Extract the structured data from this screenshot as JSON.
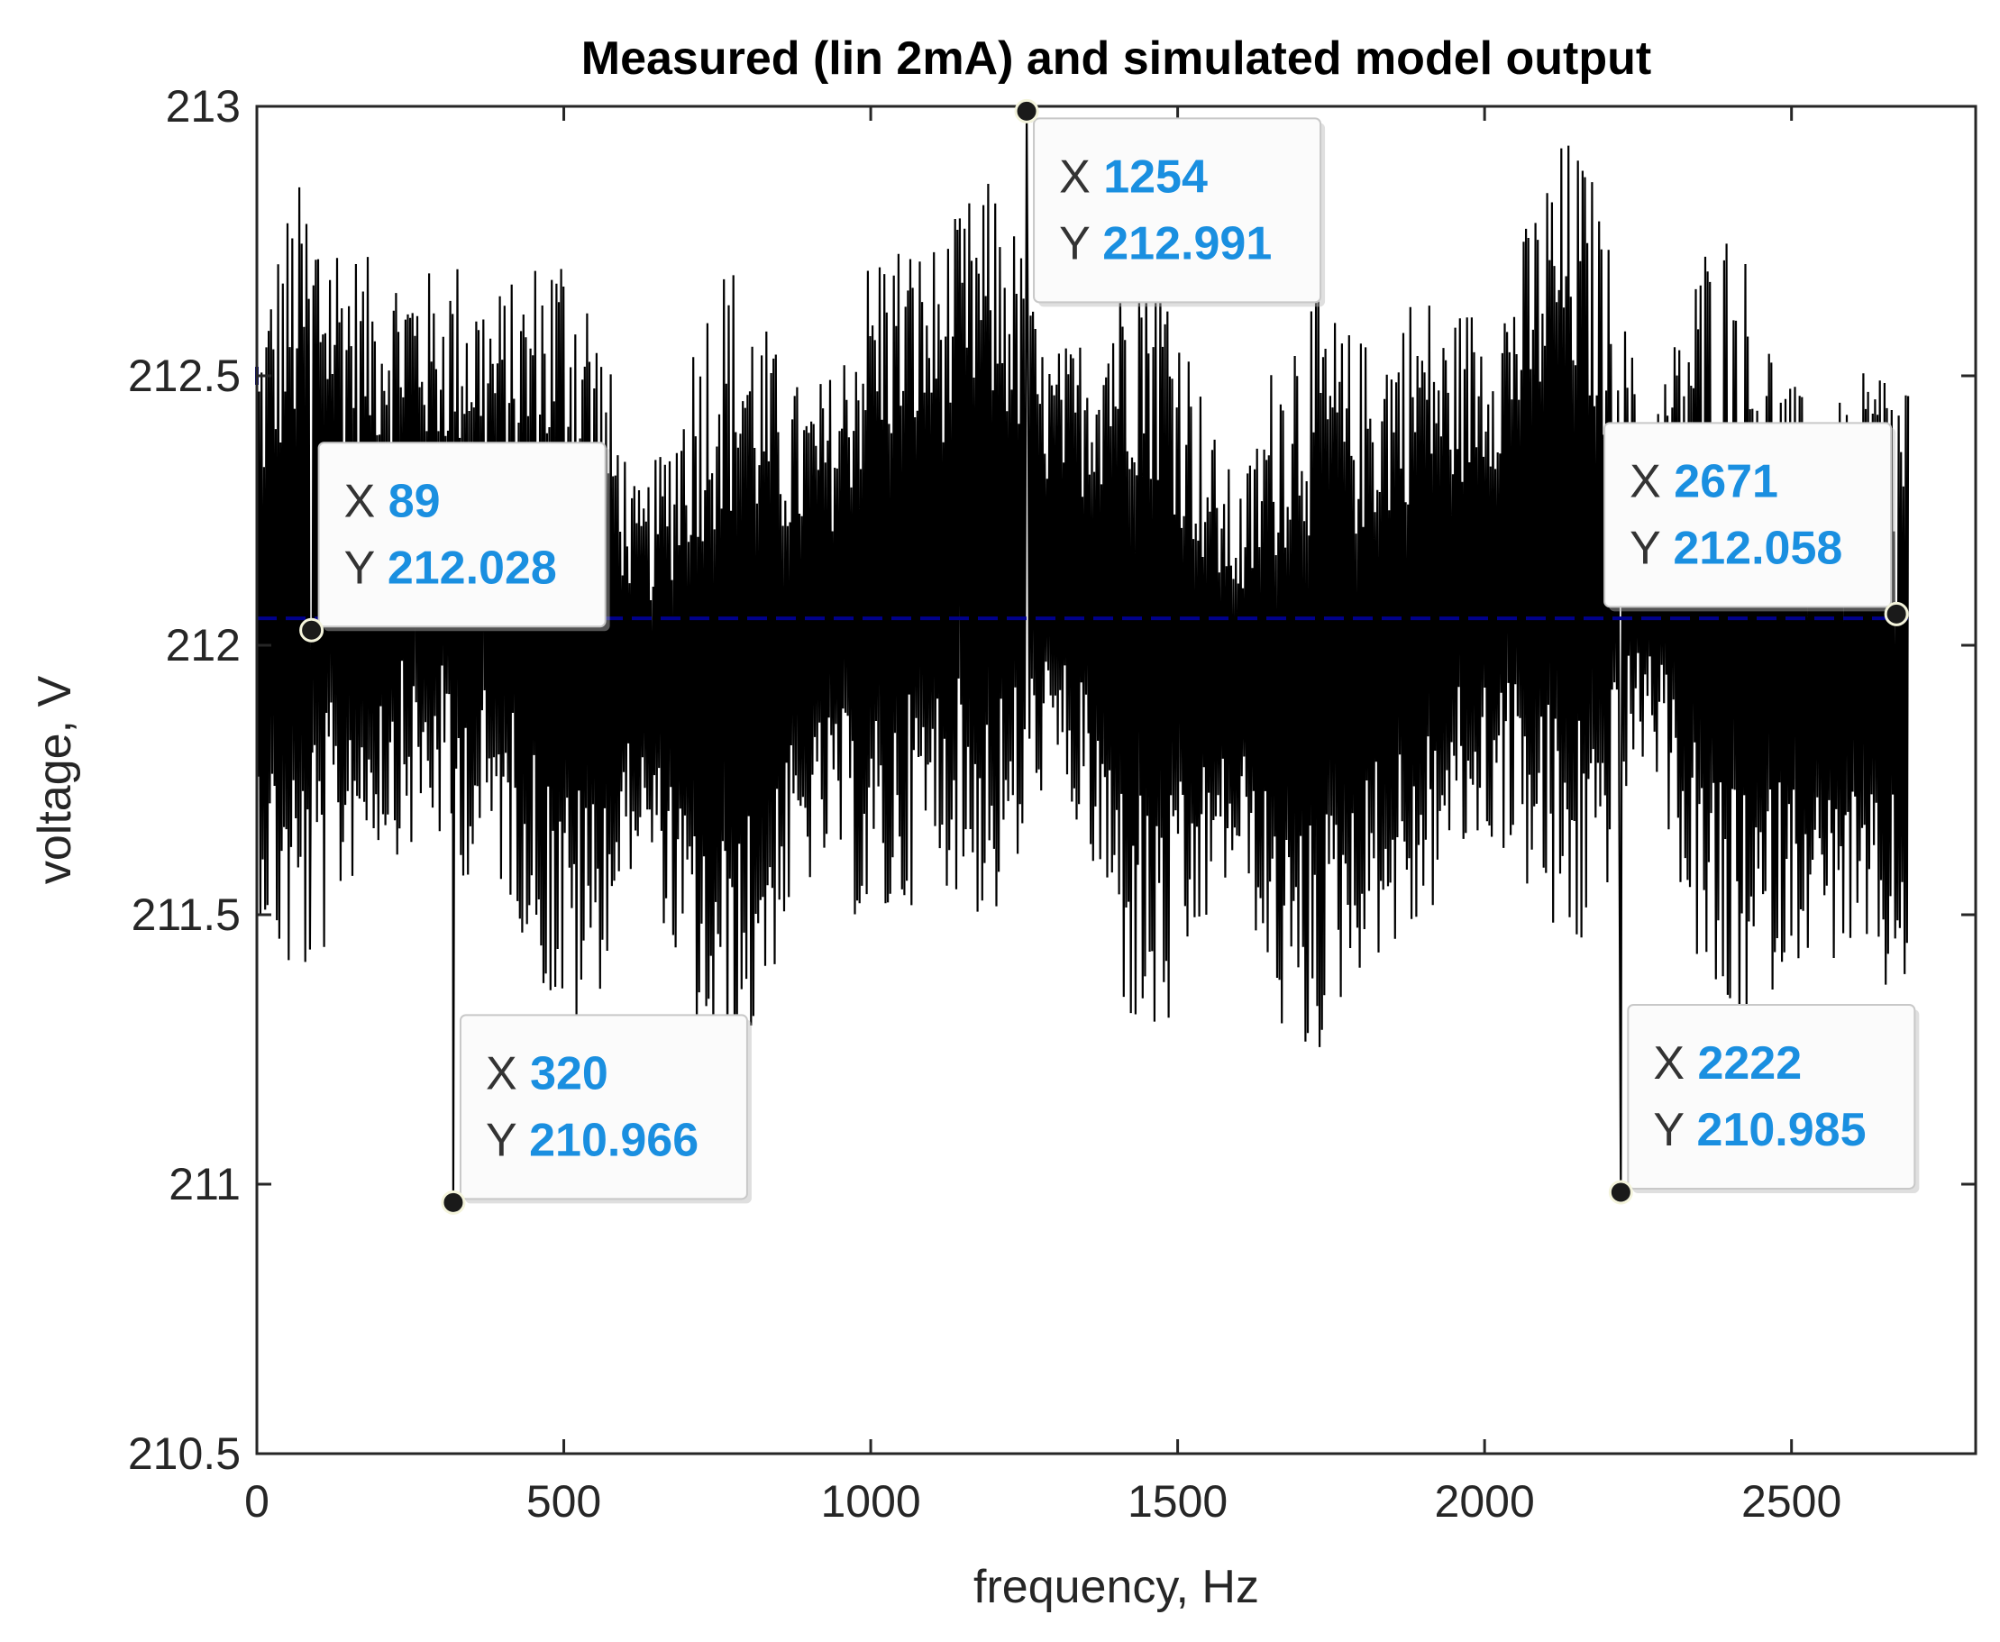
{
  "chart_data": {
    "type": "line",
    "title": "Measured (lin 2mA) and simulated model output",
    "xlabel": "frequency, Hz",
    "ylabel": "voltage, V",
    "xlim": [
      0,
      2800
    ],
    "ylim": [
      210.5,
      213
    ],
    "xticks": [
      0,
      500,
      1000,
      1500,
      2000,
      2500
    ],
    "yticks": [
      210.5,
      211,
      211.5,
      212,
      212.5,
      213
    ],
    "xtick_labels": [
      "0",
      "500",
      "1000",
      "1500",
      "2000",
      "2500"
    ],
    "ytick_labels": [
      "210.5",
      "211",
      "211.5",
      "212",
      "212.5",
      "213"
    ],
    "grid": false,
    "series": [
      {
        "name": "measured",
        "color": "#000000",
        "x_range": [
          0,
          2690
        ],
        "baseline": 212.05,
        "envelope_min": 210.966,
        "envelope_max": 212.991
      },
      {
        "name": "simulated model output",
        "color": "#00008b",
        "x_range": [
          0,
          2690
        ],
        "value": 212.05
      }
    ],
    "datatips": [
      {
        "x_key": "X",
        "y_key": "Y",
        "x": 89,
        "y": 212.028,
        "x_label": "89",
        "y_label": "212.028",
        "placement": "above-right"
      },
      {
        "x_key": "X",
        "y_key": "Y",
        "x": 320,
        "y": 210.966,
        "x_label": "320",
        "y_label": "210.966",
        "placement": "above-right"
      },
      {
        "x_key": "X",
        "y_key": "Y",
        "x": 1254,
        "y": 212.991,
        "x_label": "1254",
        "y_label": "212.991",
        "placement": "below-right"
      },
      {
        "x_key": "X",
        "y_key": "Y",
        "x": 2222,
        "y": 210.985,
        "x_label": "2222",
        "y_label": "210.985",
        "placement": "above-right"
      },
      {
        "x_key": "X",
        "y_key": "Y",
        "x": 2671,
        "y": 212.058,
        "x_label": "2671",
        "y_label": "212.058",
        "placement": "above-left"
      }
    ]
  }
}
